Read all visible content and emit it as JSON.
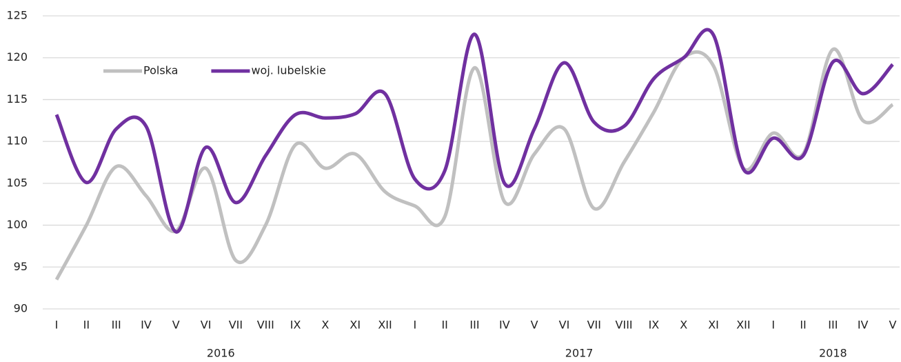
{
  "chart_data": {
    "type": "line",
    "categories": [
      "I",
      "II",
      "III",
      "IV",
      "V",
      "VI",
      "VII",
      "VIII",
      "IX",
      "X",
      "XI",
      "XII",
      "I",
      "II",
      "III",
      "IV",
      "V",
      "VI",
      "VII",
      "VIII",
      "IX",
      "X",
      "XI",
      "XII",
      "I",
      "II",
      "III",
      "IV",
      "V"
    ],
    "year_labels": [
      "2016",
      "2017",
      "2018"
    ],
    "series": [
      {
        "name": "Polska",
        "color": "#c0c0c0",
        "values": [
          93.5,
          100,
          107,
          103.5,
          99.3,
          106.8,
          95.8,
          100,
          109.6,
          106.8,
          108.5,
          104,
          102.3,
          101,
          118.8,
          102.8,
          108.5,
          111.5,
          102,
          107.5,
          113.5,
          120,
          119,
          106.8,
          111,
          108.5,
          121,
          112.5,
          114.4
        ]
      },
      {
        "name": "woj. lubelskie",
        "color": "#7030a0",
        "values": [
          113.2,
          105.1,
          111.5,
          111.8,
          99.2,
          109.3,
          102.7,
          108.3,
          113.2,
          112.8,
          113.3,
          115.7,
          105.5,
          106.5,
          122.8,
          105,
          111.5,
          119.4,
          112.3,
          111.8,
          117.5,
          120,
          122.7,
          106.7,
          110.4,
          108.3,
          119.5,
          115.7,
          119.2
        ]
      }
    ],
    "ylim": [
      90,
      125
    ],
    "yticks": [
      90,
      95,
      100,
      105,
      110,
      115,
      120,
      125
    ],
    "grid": true,
    "legend": "upper left",
    "smooth": true
  }
}
